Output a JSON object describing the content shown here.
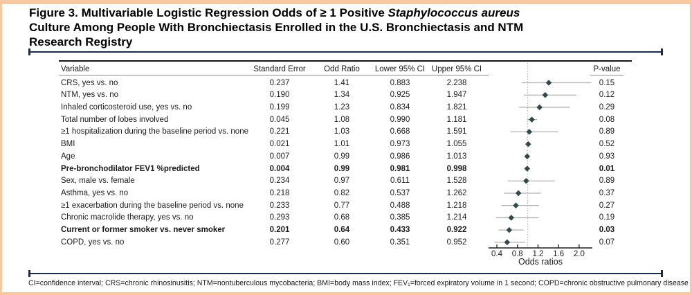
{
  "figure": {
    "title": {
      "line1_regular": "Figure 3. Multivariable Logistic Regression Odds of ≥ 1 Positive ",
      "line1_italic": "Staphylococcus aureus",
      "line2": "Culture Among People With Bronchiectasis Enrolled in the U.S. Bronchiectasis and NTM",
      "line3": "Research Registry"
    }
  },
  "table": {
    "headers": {
      "variable": "Variable",
      "se": "Standard Error",
      "or": "Odd Ratio",
      "lower": "Lower 95% CI",
      "upper": "Upper 95% CI",
      "p": "P-value"
    },
    "rows": [
      {
        "variable": "CRS, yes vs. no",
        "se": "0.237",
        "or": "1.41",
        "lower": "0.883",
        "upper": "2.238",
        "p": "0.15",
        "bold": false
      },
      {
        "variable": "NTM, yes vs. no",
        "se": "0.190",
        "or": "1.34",
        "lower": "0.925",
        "upper": "1.947",
        "p": "0.12",
        "bold": false
      },
      {
        "variable": "Inhaled corticosteroid use, yes vs. no",
        "se": "0.199",
        "or": "1.23",
        "lower": "0.834",
        "upper": "1.821",
        "p": "0.29",
        "bold": false
      },
      {
        "variable": "Total number of lobes involved",
        "se": "0.045",
        "or": "1.08",
        "lower": "0.990",
        "upper": "1.181",
        "p": "0.08",
        "bold": false
      },
      {
        "variable": "≥1 hospitalization during the baseline period vs. none",
        "se": "0.221",
        "or": "1.03",
        "lower": "0.668",
        "upper": "1.591",
        "p": "0.89",
        "bold": false
      },
      {
        "variable": "BMI",
        "se": "0.021",
        "or": "1.01",
        "lower": "0.973",
        "upper": "1.055",
        "p": "0.52",
        "bold": false
      },
      {
        "variable": "Age",
        "se": "0.007",
        "or": "0.99",
        "lower": "0.986",
        "upper": "1.013",
        "p": "0.93",
        "bold": false
      },
      {
        "variable": "Pre-bronchodilator FEV1 %predicted",
        "se": "0.004",
        "or": "0.99",
        "lower": "0.981",
        "upper": "0.998",
        "p": "0.01",
        "bold": true
      },
      {
        "variable": "Sex, male vs. female",
        "se": "0.234",
        "or": "0.97",
        "lower": "0.611",
        "upper": "1.528",
        "p": "0.89",
        "bold": false
      },
      {
        "variable": "Asthma, yes vs. no",
        "se": "0.218",
        "or": "0.82",
        "lower": "0.537",
        "upper": "1.262",
        "p": "0.37",
        "bold": false
      },
      {
        "variable": "≥1 exacerbation during the baseline period vs. none",
        "se": "0.233",
        "or": "0.77",
        "lower": "0.488",
        "upper": "1.218",
        "p": "0.27",
        "bold": false
      },
      {
        "variable": "Chronic macrolide therapy, yes vs. no",
        "se": "0.293",
        "or": "0.68",
        "lower": "0.385",
        "upper": "1.214",
        "p": "0.19",
        "bold": false
      },
      {
        "variable": "Current or former smoker vs. never smoker",
        "se": "0.201",
        "or": "0.64",
        "lower": "0.433",
        "upper": "0.922",
        "p": "0.03",
        "bold": true
      },
      {
        "variable": "COPD, yes vs. no",
        "se": "0.277",
        "or": "0.60",
        "lower": "0.351",
        "upper": "0.952",
        "p": "0.07",
        "bold": false
      }
    ]
  },
  "chart_data": {
    "type": "scatter",
    "variant": "forest-plot",
    "xlabel": "Odds ratios",
    "x_ticks": [
      0.4,
      0.8,
      1.2,
      1.6,
      2.0
    ],
    "xlim": [
      0.25,
      2.27
    ],
    "reference_line": 1.0,
    "grid": false,
    "categories": [
      "CRS, yes vs. no",
      "NTM, yes vs. no",
      "Inhaled corticosteroid use, yes vs. no",
      "Total number of lobes involved",
      "≥1 hospitalization during the baseline period vs. none",
      "BMI",
      "Age",
      "Pre-bronchodilator FEV1 %predicted",
      "Sex, male vs. female",
      "Asthma, yes vs. no",
      "≥1 exacerbation during the baseline period vs. none",
      "Chronic macrolide therapy, yes vs. no",
      "Current or former smoker vs. never smoker",
      "COPD, yes vs. no"
    ],
    "series": [
      {
        "name": "Odd Ratio",
        "values": [
          1.41,
          1.34,
          1.23,
          1.08,
          1.03,
          1.01,
          0.99,
          0.99,
          0.97,
          0.82,
          0.77,
          0.68,
          0.64,
          0.6
        ]
      },
      {
        "name": "Lower 95% CI",
        "values": [
          0.883,
          0.925,
          0.834,
          0.99,
          0.668,
          0.973,
          0.986,
          0.981,
          0.611,
          0.537,
          0.488,
          0.385,
          0.433,
          0.351
        ]
      },
      {
        "name": "Upper 95% CI",
        "values": [
          2.238,
          1.947,
          1.821,
          1.181,
          1.591,
          1.055,
          1.013,
          0.998,
          1.528,
          1.262,
          1.218,
          1.214,
          0.922,
          0.952
        ]
      }
    ]
  },
  "footnote": {
    "text": "CI=confidence interval; CRS=chronic rhinosinusitis; NTM=nontuberculous mycobacteria; BMI=body mass index; FEV₁=forced expiratory volume in 1 second; COPD=chronic obstructive pulmonary disease"
  },
  "colors": {
    "border_accent": "#f6c9a3",
    "rule_navy": "#1a2a55",
    "marker": "#31494b",
    "ci_line": "#b0b0b0",
    "reference_line": "#b8b8b8"
  }
}
